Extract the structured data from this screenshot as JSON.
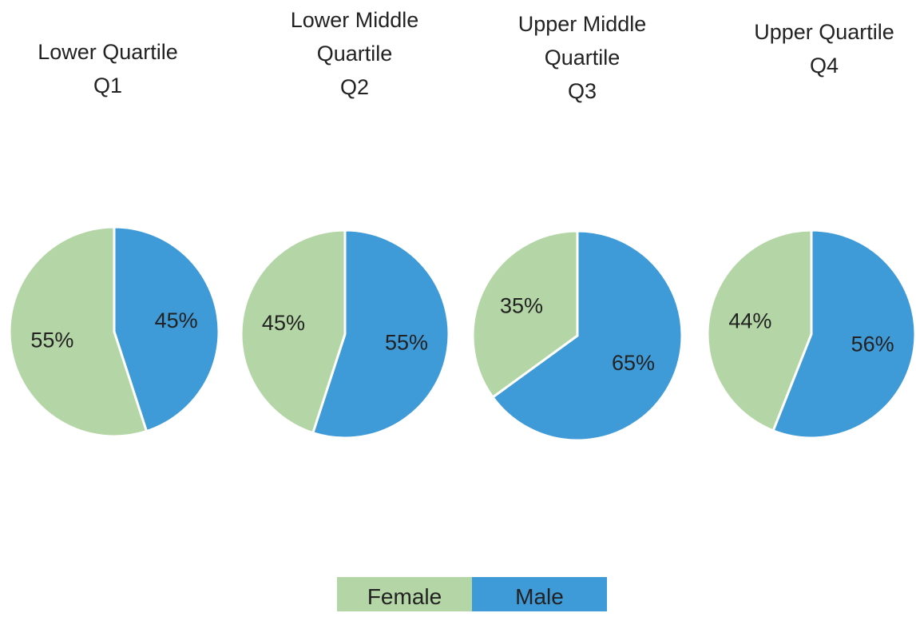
{
  "chart_data": [
    {
      "type": "pie",
      "title": "Lower Quartile",
      "subtitle": "Q1",
      "categories": [
        "Female",
        "Male"
      ],
      "values": [
        55,
        45
      ],
      "value_labels": [
        "55%",
        "45%"
      ],
      "colors": [
        "#b4d6a6",
        "#3f9ad8"
      ]
    },
    {
      "type": "pie",
      "title": "Lower Middle Quartile",
      "subtitle": "Q2",
      "categories": [
        "Female",
        "Male"
      ],
      "values": [
        45,
        55
      ],
      "value_labels": [
        "45%",
        "55%"
      ],
      "colors": [
        "#b4d6a6",
        "#3f9ad8"
      ]
    },
    {
      "type": "pie",
      "title": "Upper Middle Quartile",
      "subtitle": "Q3",
      "categories": [
        "Female",
        "Male"
      ],
      "values": [
        35,
        65
      ],
      "value_labels": [
        "35%",
        "65%"
      ],
      "colors": [
        "#b4d6a6",
        "#3f9ad8"
      ]
    },
    {
      "type": "pie",
      "title": "Upper Quartile",
      "subtitle": "Q4",
      "categories": [
        "Female",
        "Male"
      ],
      "values": [
        44,
        56
      ],
      "value_labels": [
        "44%",
        "56%"
      ],
      "colors": [
        "#b4d6a6",
        "#3f9ad8"
      ]
    }
  ]
}
